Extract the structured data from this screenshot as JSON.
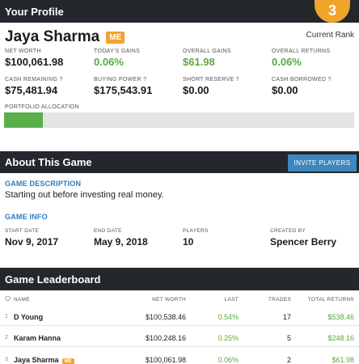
{
  "profile": {
    "header": "Your Profile",
    "rank": "3",
    "rank_label": "Current Rank",
    "name": "Jaya Sharma",
    "me_badge": "ME",
    "stats": [
      {
        "label": "NET WORTH",
        "value": "$100,061.98"
      },
      {
        "label": "TODAY'S GAINS",
        "value": "0.06%"
      },
      {
        "label": "OVERALL GAINS",
        "value": "$61.98"
      },
      {
        "label": "OVERALL RETURNS",
        "value": "0.06%"
      },
      {
        "label": "CASH REMAINING ?",
        "value": "$75,481.94"
      },
      {
        "label": "BUYING POWER ?",
        "value": "$175,543.91"
      },
      {
        "label": "SHORT RESERVE ?",
        "value": "$0.00"
      },
      {
        "label": "CASH BORROWED ?",
        "value": "$0.00"
      }
    ],
    "allocation_label": "PORTFOLIO ALLOCATION",
    "allocation_fraction": 0.11,
    "allocation_color": "#5aaf48"
  },
  "about": {
    "header": "About This Game",
    "invite_label": "INVITE PLAYERS",
    "desc_title": "GAME DESCRIPTION",
    "desc_text": "Starting out before investing real money.",
    "info_title": "GAME INFO",
    "info": [
      {
        "label": "START DATE",
        "value": "Nov 9, 2017"
      },
      {
        "label": "END DATE",
        "value": "May 9, 2018"
      },
      {
        "label": "PLAYERS",
        "value": "10"
      },
      {
        "label": "CREATED BY",
        "value": "Spencer Berry"
      }
    ]
  },
  "leaderboard": {
    "header": "Game Leaderboard",
    "sort_icon": "heart-icon",
    "columns": [
      "NAME",
      "NET WORTH",
      "LAST",
      "TRADES",
      "TOTAL RETURNS"
    ],
    "rows": [
      {
        "rank": "1",
        "name": "D Young",
        "net_worth": "$100,538.46",
        "last": "0.54%",
        "trades": "17",
        "total_returns": "$538.46",
        "me": false
      },
      {
        "rank": "2",
        "name": "Karam Hanna",
        "net_worth": "$100,248.16",
        "last": "0.25%",
        "trades": "5",
        "total_returns": "$248.16",
        "me": false
      },
      {
        "rank": "3",
        "name": "Jaya Sharma",
        "net_worth": "$100,061.98",
        "last": "0.06%",
        "trades": "2",
        "total_returns": "$61.98",
        "me": true,
        "me_badge": "ME"
      }
    ]
  },
  "colors": {
    "header_bg": "#24272b",
    "accent_orange": "#f0a42d",
    "accent_blue": "#3f87be",
    "gain_green": "#5ba841"
  }
}
